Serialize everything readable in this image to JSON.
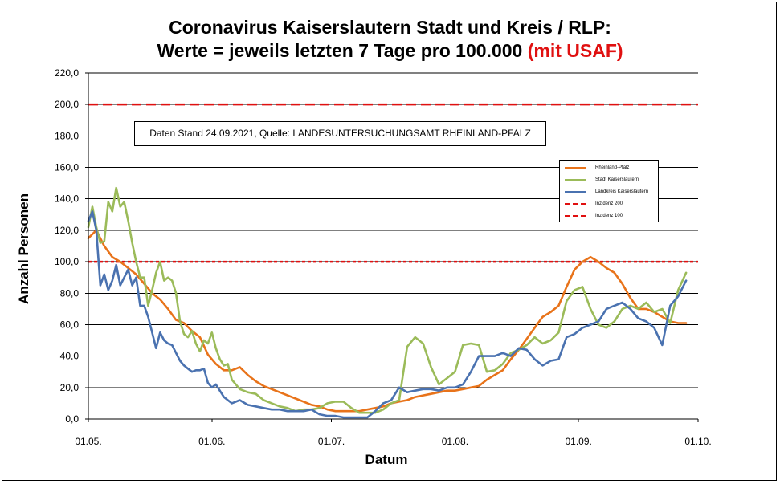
{
  "chart_data": {
    "type": "line",
    "title_line1": "Coronavirus Kaiserslautern Stadt und Kreis / RLP:",
    "title_line2": "Werte = jeweils letzten 7 Tage pro 100.000",
    "title_highlight": "(mit USAF)",
    "xlabel": "Datum",
    "ylabel": "Anzahl Personen",
    "ylim": [
      0,
      220
    ],
    "yticks": [
      "0,0",
      "20,0",
      "40,0",
      "60,0",
      "80,0",
      "100,0",
      "120,0",
      "140,0",
      "160,0",
      "180,0",
      "200,0",
      "220,0"
    ],
    "xticks": [
      {
        "label": "01.05.",
        "day": 0
      },
      {
        "label": "01.06.",
        "day": 31
      },
      {
        "label": "01.07.",
        "day": 61
      },
      {
        "label": "01.08.",
        "day": 92
      },
      {
        "label": "01.09.",
        "day": 123
      },
      {
        "label": "01.10.",
        "day": 153
      }
    ],
    "xlim_days": [
      0,
      153
    ],
    "grid": "horizontal",
    "legend_position": "right",
    "annotation": "Daten Stand 24.09.2021, Quelle: LANDESUNTERSUCHUNGSAMT RHEINLAND-PFALZ",
    "thresholds": [
      {
        "name": "Inzidenz 200",
        "value": 200,
        "color": "#e01010",
        "style": "dashed"
      },
      {
        "name": "Inzidenz 100",
        "value": 100,
        "color": "#e01010",
        "style": "dotted"
      }
    ],
    "series": [
      {
        "name": "Rheinland-Pfalz",
        "color": "#e8731a",
        "x_days": [
          0,
          2,
          4,
          6,
          8,
          10,
          12,
          14,
          16,
          18,
          20,
          22,
          24,
          26,
          28,
          30,
          32,
          34,
          36,
          38,
          40,
          42,
          44,
          46,
          48,
          50,
          52,
          54,
          56,
          58,
          60,
          62,
          64,
          66,
          68,
          70,
          72,
          74,
          76,
          78,
          80,
          82,
          84,
          86,
          88,
          90,
          92,
          94,
          96,
          98,
          100,
          102,
          104,
          106,
          108,
          110,
          112,
          114,
          116,
          118,
          120,
          122,
          124,
          126,
          128,
          130,
          132,
          134,
          136,
          138,
          140,
          142,
          144,
          146,
          148,
          150
        ],
        "values": [
          115,
          120,
          110,
          103,
          100,
          96,
          92,
          86,
          80,
          76,
          70,
          63,
          61,
          56,
          52,
          41,
          35,
          31,
          31,
          33,
          28,
          24,
          21,
          19,
          17,
          15,
          13,
          11,
          9,
          8,
          6,
          5,
          5,
          5,
          5,
          6,
          7,
          8,
          10,
          11,
          12,
          14,
          15,
          16,
          17,
          18,
          18,
          19,
          20,
          21,
          25,
          28,
          31,
          38,
          44,
          51,
          58,
          65,
          68,
          72,
          84,
          95,
          100,
          103,
          100,
          96,
          93,
          86,
          77,
          70,
          70,
          68,
          65,
          62,
          61,
          61
        ]
      },
      {
        "name": "Stadt Kaiserslautern",
        "color": "#9bbb59",
        "x_days": [
          0,
          1,
          2,
          3,
          4,
          5,
          6,
          7,
          8,
          9,
          10,
          11,
          12,
          13,
          14,
          15,
          16,
          17,
          18,
          19,
          20,
          21,
          22,
          23,
          24,
          25,
          26,
          27,
          28,
          29,
          30,
          31,
          32,
          33,
          34,
          35,
          36,
          38,
          40,
          42,
          44,
          46,
          48,
          50,
          52,
          54,
          56,
          58,
          60,
          62,
          64,
          66,
          68,
          70,
          72,
          74,
          76,
          78,
          80,
          82,
          84,
          86,
          88,
          90,
          92,
          94,
          96,
          98,
          100,
          102,
          104,
          106,
          108,
          110,
          112,
          114,
          116,
          118,
          120,
          122,
          124,
          126,
          128,
          130,
          132,
          134,
          136,
          138,
          140,
          142,
          144,
          146,
          148,
          150
        ],
        "values": [
          122,
          135,
          122,
          112,
          113,
          138,
          132,
          147,
          135,
          138,
          126,
          112,
          100,
          90,
          90,
          72,
          82,
          93,
          100,
          88,
          90,
          88,
          80,
          62,
          54,
          52,
          56,
          48,
          43,
          50,
          48,
          55,
          45,
          38,
          34,
          35,
          25,
          19,
          17,
          16,
          12,
          10,
          8,
          7,
          5,
          6,
          6,
          7,
          10,
          11,
          11,
          7,
          4,
          4,
          4,
          6,
          10,
          12,
          46,
          52,
          48,
          33,
          22,
          26,
          30,
          47,
          48,
          47,
          30,
          31,
          35,
          42,
          44,
          47,
          52,
          48,
          50,
          55,
          75,
          82,
          84,
          70,
          60,
          58,
          62,
          70,
          72,
          70,
          74,
          68,
          70,
          61,
          82,
          93
        ]
      },
      {
        "name": "Landkreis Kaiserslautern",
        "color": "#4a72b0",
        "x_days": [
          0,
          1,
          2,
          3,
          4,
          5,
          6,
          7,
          8,
          9,
          10,
          11,
          12,
          13,
          14,
          15,
          16,
          17,
          18,
          19,
          20,
          21,
          22,
          23,
          24,
          25,
          26,
          27,
          28,
          29,
          30,
          31,
          32,
          34,
          36,
          38,
          40,
          42,
          44,
          46,
          48,
          50,
          52,
          54,
          56,
          58,
          60,
          62,
          64,
          66,
          68,
          70,
          72,
          74,
          76,
          78,
          80,
          82,
          84,
          86,
          88,
          90,
          92,
          94,
          96,
          98,
          100,
          102,
          104,
          106,
          108,
          110,
          112,
          114,
          116,
          118,
          120,
          122,
          124,
          126,
          128,
          130,
          132,
          134,
          136,
          138,
          140,
          142,
          144,
          146,
          148,
          150
        ],
        "values": [
          126,
          132,
          120,
          85,
          92,
          82,
          88,
          98,
          85,
          90,
          95,
          85,
          90,
          72,
          72,
          65,
          55,
          45,
          55,
          50,
          48,
          47,
          42,
          37,
          34,
          32,
          30,
          31,
          31,
          32,
          23,
          20,
          22,
          14,
          10,
          12,
          9,
          8,
          7,
          6,
          6,
          5,
          5,
          5,
          6,
          3,
          2,
          2,
          1,
          1,
          1,
          1,
          5,
          10,
          12,
          20,
          17,
          18,
          19,
          19,
          18,
          20,
          20,
          22,
          30,
          40,
          40,
          40,
          42,
          40,
          45,
          44,
          38,
          34,
          37,
          38,
          52,
          54,
          58,
          60,
          62,
          70,
          72,
          74,
          70,
          64,
          62,
          58,
          47,
          72,
          78,
          88
        ]
      }
    ]
  }
}
